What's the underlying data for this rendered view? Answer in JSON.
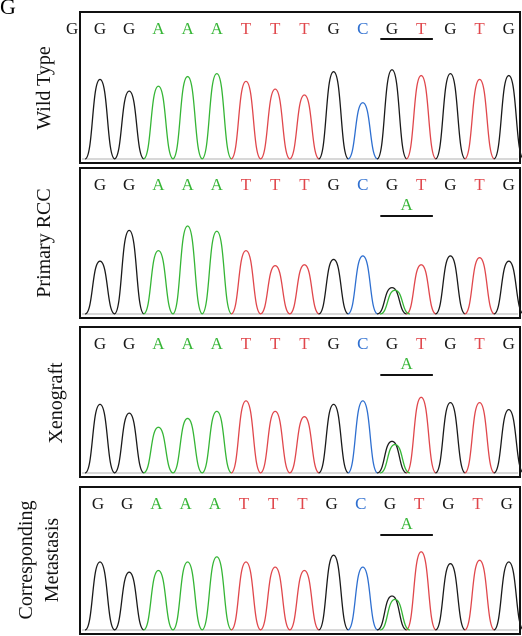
{
  "figure_letter": "G",
  "colors": {
    "G": "#1a1a1a",
    "A": "#35b535",
    "T": "#e0474c",
    "C": "#2e6fd0",
    "frame": "#111111",
    "mutation_label": "#35b535"
  },
  "panels": [
    {
      "label_lines": [
        "Wild Type"
      ],
      "sequence": [
        "G",
        "G",
        "A",
        "A",
        "A",
        "T",
        "T",
        "T",
        "G",
        "C",
        "G",
        "T",
        "G",
        "T",
        "G"
      ],
      "leading_base": "G",
      "mutation": null
    },
    {
      "label_lines": [
        "Primary RCC"
      ],
      "sequence": [
        "G",
        "G",
        "A",
        "A",
        "A",
        "T",
        "T",
        "T",
        "G",
        "C",
        "G",
        "T",
        "G",
        "T",
        "G"
      ],
      "leading_base": null,
      "mutation": "A"
    },
    {
      "label_lines": [
        "Xenograft"
      ],
      "sequence": [
        "G",
        "G",
        "A",
        "A",
        "A",
        "T",
        "T",
        "T",
        "G",
        "C",
        "G",
        "T",
        "G",
        "T",
        "G"
      ],
      "leading_base": null,
      "mutation": "A"
    },
    {
      "label_lines": [
        "Corresponding",
        "Metastasis"
      ],
      "sequence": [
        "G",
        "G",
        "A",
        "A",
        "A",
        "T",
        "T",
        "T",
        "G",
        "C",
        "G",
        "T",
        "G",
        "T",
        "G"
      ],
      "leading_base": null,
      "mutation": "A"
    }
  ]
}
